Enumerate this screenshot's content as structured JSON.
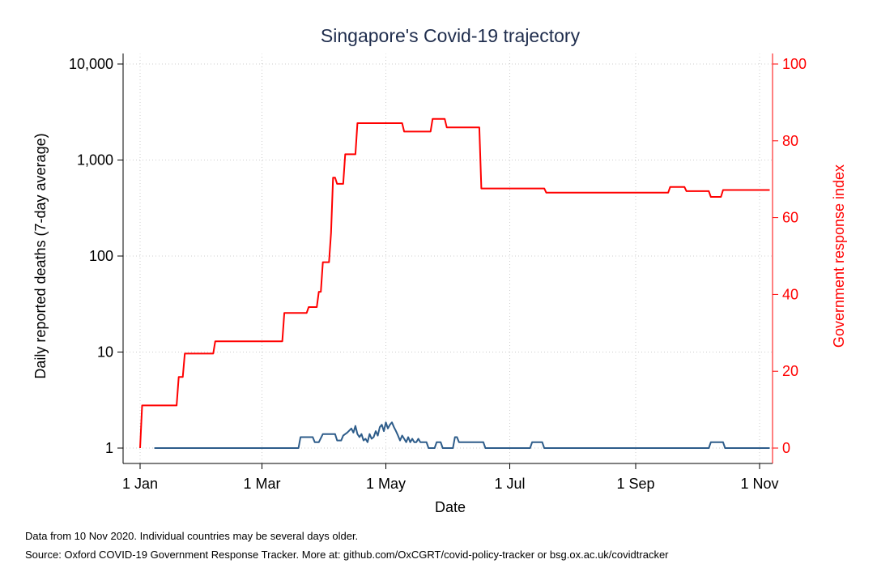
{
  "chart_data": {
    "type": "line",
    "title": "Singapore's Covid-19 trajectory",
    "xlabel": "Date",
    "ylabel_left": "Daily reported deaths (7-day average)",
    "ylabel_right": "Government response index",
    "x_ticks": [
      {
        "label": "1 Jan",
        "day": 0
      },
      {
        "label": "1 Mar",
        "day": 60
      },
      {
        "label": "1 May",
        "day": 121
      },
      {
        "label": "1 Jul",
        "day": 182
      },
      {
        "label": "1 Sep",
        "day": 244
      },
      {
        "label": "1 Nov",
        "day": 305
      }
    ],
    "xlim_days": [
      0,
      310
    ],
    "yscale_left": "log",
    "ylim_left": [
      1,
      10000
    ],
    "yticks_left": [
      {
        "v": 1,
        "label": "1"
      },
      {
        "v": 10,
        "label": "10"
      },
      {
        "v": 100,
        "label": "100"
      },
      {
        "v": 1000,
        "label": "1,000"
      },
      {
        "v": 10000,
        "label": "10,000"
      }
    ],
    "ylim_right": [
      0,
      100
    ],
    "yticks_right": [
      {
        "v": 0,
        "label": "0"
      },
      {
        "v": 20,
        "label": "20"
      },
      {
        "v": 40,
        "label": "40"
      },
      {
        "v": 60,
        "label": "60"
      },
      {
        "v": 80,
        "label": "80"
      },
      {
        "v": 100,
        "label": "100"
      }
    ],
    "grid": true,
    "colors": {
      "deaths": "#2d5c8a",
      "response": "#ff0000",
      "grid": "#cccccc",
      "axis_right": "#ff0000"
    },
    "series": [
      {
        "key": "deaths",
        "axis": "left",
        "points": [
          [
            7,
            1
          ],
          [
            78,
            1
          ],
          [
            79,
            1.3
          ],
          [
            85,
            1.3
          ],
          [
            86,
            1.15
          ],
          [
            88,
            1.15
          ],
          [
            90,
            1.4
          ],
          [
            96,
            1.4
          ],
          [
            97,
            1.2
          ],
          [
            99,
            1.2
          ],
          [
            100,
            1.35
          ],
          [
            102,
            1.45
          ],
          [
            104,
            1.6
          ],
          [
            105,
            1.45
          ],
          [
            106,
            1.7
          ],
          [
            107,
            1.4
          ],
          [
            108,
            1.3
          ],
          [
            109,
            1.4
          ],
          [
            110,
            1.2
          ],
          [
            111,
            1.25
          ],
          [
            112,
            1.15
          ],
          [
            113,
            1.4
          ],
          [
            114,
            1.25
          ],
          [
            115,
            1.3
          ],
          [
            116,
            1.5
          ],
          [
            117,
            1.35
          ],
          [
            118,
            1.65
          ],
          [
            119,
            1.75
          ],
          [
            120,
            1.5
          ],
          [
            121,
            1.85
          ],
          [
            122,
            1.6
          ],
          [
            123,
            1.75
          ],
          [
            124,
            1.85
          ],
          [
            125,
            1.65
          ],
          [
            126,
            1.5
          ],
          [
            127,
            1.35
          ],
          [
            128,
            1.2
          ],
          [
            129,
            1.35
          ],
          [
            130,
            1.25
          ],
          [
            131,
            1.15
          ],
          [
            132,
            1.3
          ],
          [
            133,
            1.15
          ],
          [
            134,
            1.25
          ],
          [
            135,
            1.15
          ],
          [
            136,
            1.15
          ],
          [
            137,
            1.25
          ],
          [
            138,
            1.15
          ],
          [
            139,
            1.15
          ],
          [
            140,
            1.15
          ],
          [
            141,
            1.15
          ],
          [
            142,
            1.0
          ],
          [
            145,
            1.0
          ],
          [
            146,
            1.15
          ],
          [
            148,
            1.15
          ],
          [
            149,
            1.0
          ],
          [
            154,
            1.0
          ],
          [
            155,
            1.3
          ],
          [
            156,
            1.3
          ],
          [
            157,
            1.15
          ],
          [
            169,
            1.15
          ],
          [
            170,
            1.0
          ],
          [
            192,
            1.0
          ],
          [
            193,
            1.15
          ],
          [
            198,
            1.15
          ],
          [
            199,
            1.0
          ],
          [
            280,
            1.0
          ],
          [
            281,
            1.15
          ],
          [
            287,
            1.15
          ],
          [
            288,
            1.0
          ],
          [
            310,
            1.0
          ]
        ]
      },
      {
        "key": "response",
        "axis": "right",
        "points": [
          [
            0,
            0
          ],
          [
            1,
            11.1
          ],
          [
            18,
            11.1
          ],
          [
            19,
            18.5
          ],
          [
            21,
            18.5
          ],
          [
            22,
            24.6
          ],
          [
            36,
            24.6
          ],
          [
            37,
            27.8
          ],
          [
            70,
            27.8
          ],
          [
            71,
            35.2
          ],
          [
            82,
            35.2
          ],
          [
            83,
            36.7
          ],
          [
            87,
            36.7
          ],
          [
            88,
            40.7
          ],
          [
            89,
            40.7
          ],
          [
            90,
            48.4
          ],
          [
            93,
            48.4
          ],
          [
            94,
            56
          ],
          [
            95,
            70.4
          ],
          [
            96,
            70.4
          ],
          [
            97,
            68.8
          ],
          [
            100,
            68.8
          ],
          [
            101,
            76.5
          ],
          [
            106,
            76.5
          ],
          [
            107,
            84.6
          ],
          [
            129,
            84.6
          ],
          [
            130,
            82.4
          ],
          [
            143,
            82.4
          ],
          [
            144,
            85.7
          ],
          [
            150,
            85.7
          ],
          [
            151,
            83.5
          ],
          [
            167,
            83.5
          ],
          [
            168,
            67.6
          ],
          [
            199,
            67.6
          ],
          [
            200,
            66.5
          ],
          [
            260,
            66.5
          ],
          [
            261,
            68
          ],
          [
            268,
            68
          ],
          [
            269,
            66.9
          ],
          [
            280,
            66.9
          ],
          [
            281,
            65.4
          ],
          [
            286,
            65.4
          ],
          [
            287,
            67.2
          ],
          [
            310,
            67.2
          ]
        ]
      }
    ]
  },
  "notes": {
    "line1": "Data from 10 Nov 2020. Individual countries may be several days older.",
    "line2": "Source: Oxford COVID-19 Government Response Tracker. More at: github.com/OxCGRT/covid-policy-tracker or bsg.ox.ac.uk/covidtracker"
  }
}
